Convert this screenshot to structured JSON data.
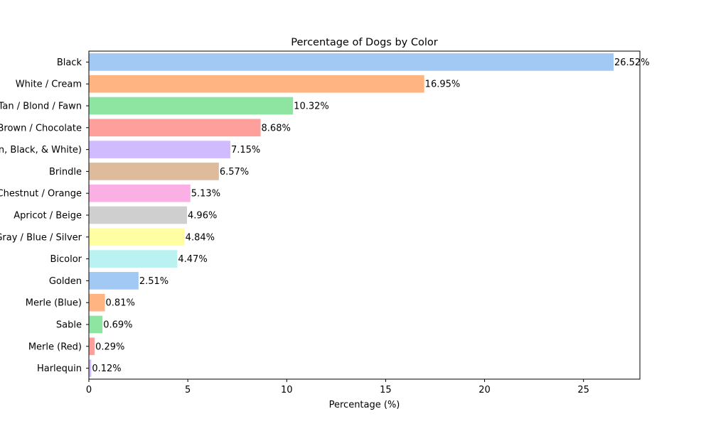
{
  "chart_data": {
    "type": "bar",
    "orientation": "horizontal",
    "title": "Percentage of Dogs by Color",
    "xlabel": "Percentage (%)",
    "ylabel": "",
    "xlim": [
      0,
      27.85
    ],
    "xticks": [
      0,
      5,
      10,
      15,
      20,
      25
    ],
    "grid": false,
    "categories": [
      "Black",
      "White / Cream",
      "Tan / Blond / Fawn",
      "Brown / Chocolate",
      "Tricolor (Tan, Black, & White)",
      "Brindle",
      "Red / Chestnut / Orange",
      "Apricot / Beige",
      "Gray / Blue / Silver",
      "Bicolor",
      "Golden",
      "Merle (Blue)",
      "Sable",
      "Merle (Red)",
      "Harlequin"
    ],
    "values": [
      26.52,
      16.95,
      10.32,
      8.68,
      7.15,
      6.57,
      5.13,
      4.96,
      4.84,
      4.47,
      2.51,
      0.81,
      0.69,
      0.29,
      0.12
    ],
    "data_labels": [
      "26.52%",
      "16.95%",
      "10.32%",
      "8.68%",
      "7.15%",
      "6.57%",
      "5.13%",
      "4.96%",
      "4.84%",
      "4.47%",
      "2.51%",
      "0.81%",
      "0.69%",
      "0.29%",
      "0.12%"
    ],
    "colors": [
      "#a1c9f4",
      "#ffb482",
      "#8de5a1",
      "#ff9f9b",
      "#d0bbff",
      "#debb9b",
      "#fab0e4",
      "#cfcfcf",
      "#fffea3",
      "#b9f2f0",
      "#a1c9f4",
      "#ffb482",
      "#8de5a1",
      "#ff9f9b",
      "#d0bbff"
    ]
  }
}
